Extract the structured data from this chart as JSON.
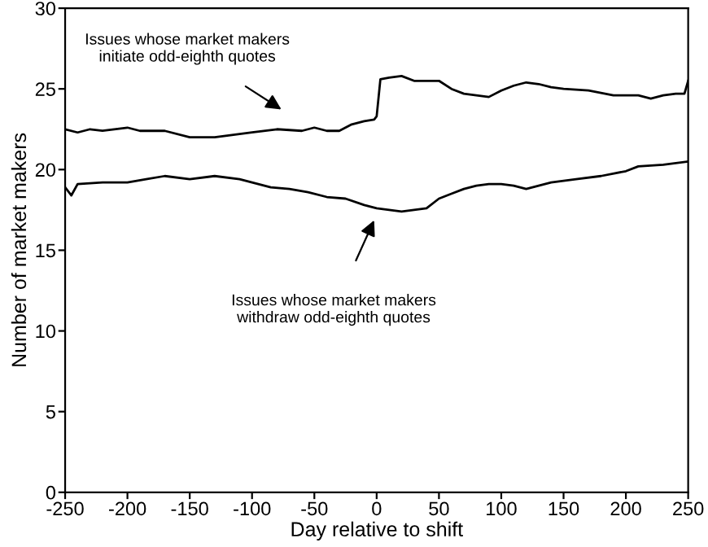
{
  "chart_data": {
    "type": "line",
    "xlabel": "Day relative to shift",
    "ylabel": "Number of market makers",
    "xlim": [
      -250,
      250
    ],
    "ylim": [
      0,
      30
    ],
    "xticks": [
      -250,
      -200,
      -150,
      -100,
      -50,
      0,
      50,
      100,
      150,
      200,
      250
    ],
    "yticks": [
      0,
      5,
      10,
      15,
      20,
      25,
      30
    ],
    "grid": false,
    "legend": false,
    "marker": "none",
    "line_style": "solid",
    "series": [
      {
        "color": "#000000",
        "x": [
          -250,
          -240,
          -230,
          -220,
          -200,
          -190,
          -170,
          -150,
          -130,
          -110,
          -100,
          -80,
          -60,
          -50,
          -40,
          -30,
          -20,
          -10,
          -2,
          0,
          3,
          10,
          20,
          30,
          40,
          50,
          60,
          70,
          80,
          90,
          100,
          110,
          120,
          130,
          140,
          150,
          170,
          190,
          200,
          210,
          220,
          230,
          240,
          247,
          250
        ],
        "values": [
          22.5,
          22.3,
          22.5,
          22.4,
          22.6,
          22.4,
          22.4,
          22.0,
          22.0,
          22.2,
          22.3,
          22.5,
          22.4,
          22.6,
          22.4,
          22.4,
          22.8,
          23.0,
          23.1,
          23.3,
          25.6,
          25.7,
          25.8,
          25.5,
          25.5,
          25.5,
          25.0,
          24.7,
          24.6,
          24.5,
          24.9,
          25.2,
          25.4,
          25.3,
          25.1,
          25.0,
          24.9,
          24.6,
          24.6,
          24.6,
          24.4,
          24.6,
          24.7,
          24.7,
          25.5
        ]
      },
      {
        "color": "#000000",
        "x": [
          -250,
          -245,
          -240,
          -220,
          -200,
          -185,
          -170,
          -150,
          -130,
          -110,
          -100,
          -85,
          -70,
          -55,
          -40,
          -25,
          -10,
          0,
          10,
          20,
          30,
          40,
          50,
          60,
          70,
          80,
          90,
          100,
          110,
          120,
          130,
          140,
          160,
          180,
          200,
          210,
          230,
          250
        ],
        "values": [
          18.9,
          18.4,
          19.1,
          19.2,
          19.2,
          19.4,
          19.6,
          19.4,
          19.6,
          19.4,
          19.2,
          18.9,
          18.8,
          18.6,
          18.3,
          18.2,
          17.8,
          17.6,
          17.5,
          17.4,
          17.5,
          17.6,
          18.2,
          18.5,
          18.8,
          19.0,
          19.1,
          19.1,
          19.0,
          18.8,
          19.0,
          19.2,
          19.4,
          19.6,
          19.9,
          20.2,
          20.3,
          20.5
        ]
      }
    ],
    "annotations": [
      "Issues whose market makers\ninitiate odd-eighth quotes",
      "Issues whose market makers\nwithdraw odd-eighth quotes"
    ]
  }
}
